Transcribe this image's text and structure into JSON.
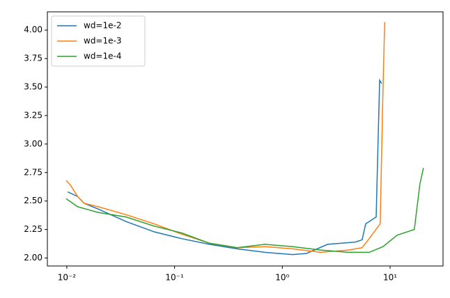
{
  "chart_data": {
    "type": "line",
    "xscale": "log",
    "legend": "upper left",
    "xlim": [
      0.0066,
      31
    ],
    "ylim": [
      1.93,
      4.16
    ],
    "xticks": [
      {
        "value": 0.01,
        "label": "10⁻²"
      },
      {
        "value": 0.1,
        "label": "10⁻¹"
      },
      {
        "value": 1,
        "label": "10⁰"
      },
      {
        "value": 10,
        "label": "10¹"
      }
    ],
    "yticks": [
      {
        "value": 2,
        "label": "2.00"
      },
      {
        "value": 2.25,
        "label": "2.25"
      },
      {
        "value": 2.5,
        "label": "2.50"
      },
      {
        "value": 2.75,
        "label": "2.75"
      },
      {
        "value": 3,
        "label": "3.00"
      },
      {
        "value": 3.25,
        "label": "3.25"
      },
      {
        "value": 3.5,
        "label": "3.50"
      },
      {
        "value": 3.75,
        "label": "3.75"
      },
      {
        "value": 4,
        "label": "4.00"
      }
    ],
    "series": [
      {
        "name": "wd=1e-2",
        "color": "#1f77b4",
        "x": [
          0.0102,
          0.0126,
          0.0145,
          0.0195,
          0.0355,
          0.0645,
          0.116,
          0.21,
          0.38,
          0.69,
          1.25,
          1.68,
          2.63,
          4.76,
          5.5,
          5.94,
          6.4,
          7.43,
          8.0,
          8.35
        ],
        "values": [
          2.58,
          2.54,
          2.48,
          2.43,
          2.32,
          2.23,
          2.17,
          2.12,
          2.08,
          2.05,
          2.03,
          2.04,
          2.12,
          2.14,
          2.16,
          2.3,
          2.32,
          2.36,
          3.56,
          3.53
        ]
      },
      {
        "name": "wd=1e-3",
        "color": "#ff7f0e",
        "x": [
          0.00986,
          0.0108,
          0.0126,
          0.0145,
          0.0195,
          0.0355,
          0.0645,
          0.116,
          0.21,
          0.38,
          0.69,
          1.25,
          2.26,
          4.1,
          5.5,
          6.4,
          8.1,
          8.5,
          8.9
        ],
        "values": [
          2.68,
          2.64,
          2.54,
          2.48,
          2.45,
          2.38,
          2.3,
          2.21,
          2.13,
          2.09,
          2.1,
          2.08,
          2.05,
          2.07,
          2.09,
          2.17,
          2.3,
          3.29,
          4.07
        ]
      },
      {
        "name": "wd=1e-4",
        "color": "#2ca02c",
        "x": [
          0.00986,
          0.0126,
          0.0195,
          0.0355,
          0.0645,
          0.116,
          0.21,
          0.38,
          0.69,
          1.25,
          2.26,
          4.1,
          6.4,
          8.6,
          11.6,
          16.8,
          18.9,
          20.4
        ],
        "values": [
          2.52,
          2.45,
          2.4,
          2.36,
          2.28,
          2.22,
          2.13,
          2.09,
          2.12,
          2.1,
          2.07,
          2.05,
          2.05,
          2.1,
          2.2,
          2.25,
          2.65,
          2.79
        ]
      }
    ]
  }
}
